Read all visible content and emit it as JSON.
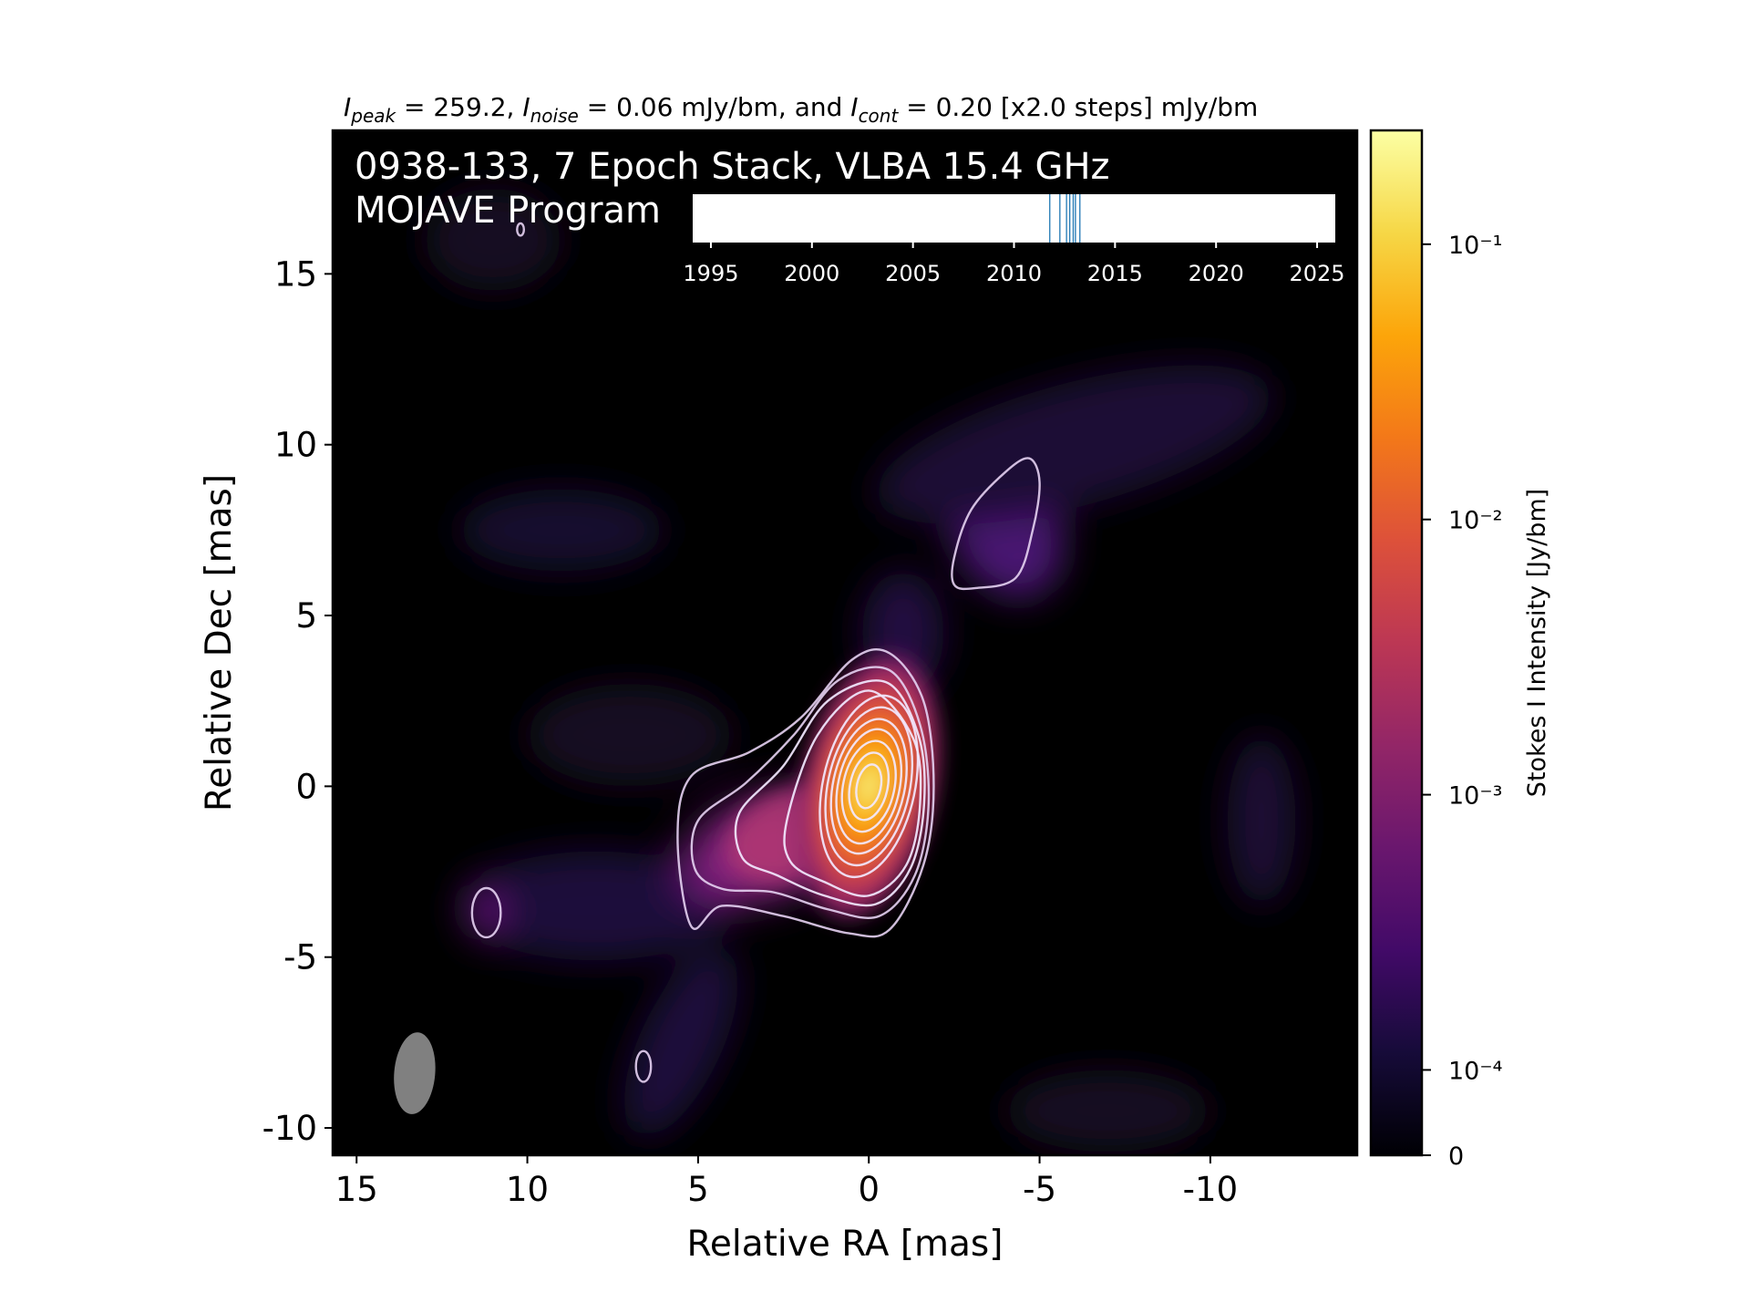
{
  "chart_data": {
    "type": "image",
    "title_parts": [
      "I",
      "peak",
      " = 259.2, ",
      "I",
      "noise",
      " = 0.06 mJy/bm, and ",
      "I",
      "cont",
      " = 0.20 [x2.0 steps] mJy/bm"
    ],
    "annotations": [
      "0938-133, 7 Epoch Stack, VLBA 15.4 GHz",
      "MOJAVE Program"
    ],
    "xlabel": "Relative RA [mas]",
    "ylabel": "Relative Dec [mas]",
    "xlim": [
      15.7,
      -14.3
    ],
    "xticks": [
      15,
      10,
      5,
      0,
      -5,
      -10
    ],
    "ylim": [
      -10.8,
      19.2
    ],
    "yticks": [
      15,
      10,
      5,
      0,
      -5,
      -10
    ],
    "beam": {
      "x": 13.3,
      "y": -8.4,
      "major": 2.4,
      "minor": 1.2,
      "pa": -5,
      "color": "#808080"
    },
    "colorbar": {
      "label": "Stokes I Intensity [Jy/bm]",
      "scale": "symlog",
      "clim": [
        0,
        0.2592
      ],
      "linthresh": 0.0001,
      "linscale": 0.31,
      "ticks": [
        0,
        {
          "value": 0.0001,
          "label": "10⁻⁴"
        },
        {
          "value": 0.001,
          "label": "10⁻³"
        },
        {
          "value": 0.01,
          "label": "10⁻²"
        },
        {
          "value": 0.1,
          "label": "10⁻¹"
        }
      ]
    },
    "timeline": {
      "xlim": [
        1994.1,
        2025.9
      ],
      "xticks": [
        1995,
        2000,
        2005,
        2010,
        2015,
        2020,
        2025
      ],
      "epochs": [
        2011.77,
        2012.27,
        2012.6,
        2012.76,
        2012.93,
        2013.04,
        2013.26
      ],
      "color": "#1f77b4"
    }
  }
}
